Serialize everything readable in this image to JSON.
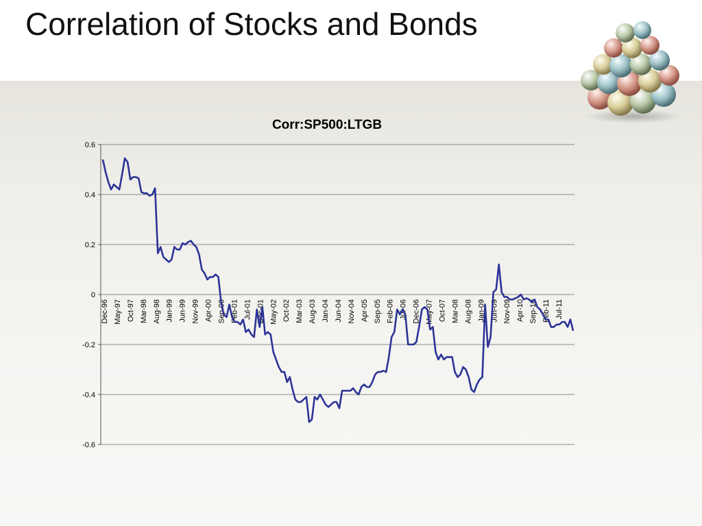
{
  "slide": {
    "title": "Correlation of Stocks and Bonds",
    "logo_icon": "money-balls-pyramid-icon"
  },
  "chart_data": {
    "type": "line",
    "title": "Corr:SP500:LTGB",
    "xlabel": "",
    "ylabel": "",
    "ylim": [
      -0.6,
      0.6
    ],
    "yticks": [
      "0.6",
      "0.4",
      "0.2",
      "0",
      "-0.2",
      "-0.4",
      "-0.6"
    ],
    "xticks": [
      "Dec-96",
      "May-97",
      "Oct-97",
      "Mar-98",
      "Aug-98",
      "Jan-99",
      "Jun-99",
      "Nov-99",
      "Apr-00",
      "Sep-00",
      "Feb-01",
      "Jul-01",
      "Dec-01",
      "May-02",
      "Oct-02",
      "Mar-03",
      "Aug-03",
      "Jan-04",
      "Jun-04",
      "Nov-04",
      "Apr-05",
      "Sep-05",
      "Feb-06",
      "Jul-06",
      "Dec-06",
      "May-07",
      "Oct-07",
      "Mar-08",
      "Aug-08",
      "Jan-09",
      "Jun-09",
      "Nov-09",
      "Apr-10",
      "Sep-10",
      "Feb-11",
      "Jul-11"
    ],
    "grid": true,
    "line_color": "#2b3396",
    "series": [
      {
        "values": [
          0.54,
          0.49,
          0.45,
          0.42,
          0.44,
          0.43,
          0.42,
          0.48,
          0.545,
          0.53,
          0.46,
          0.47,
          0.47,
          0.465,
          0.41,
          0.405,
          0.405,
          0.395,
          0.4,
          0.425,
          0.165,
          0.19,
          0.15,
          0.14,
          0.13,
          0.14,
          0.19,
          0.18,
          0.18,
          0.205,
          0.2,
          0.21,
          0.215,
          0.2,
          0.19,
          0.16,
          0.1,
          0.085,
          0.06,
          0.07,
          0.07,
          0.08,
          0.07,
          -0.03,
          -0.08,
          -0.09,
          -0.04,
          -0.09,
          -0.11,
          -0.11,
          -0.12,
          -0.1,
          -0.15,
          -0.14,
          -0.16,
          -0.17,
          -0.06,
          -0.13,
          -0.05,
          -0.16,
          -0.15,
          -0.16,
          -0.23,
          -0.26,
          -0.29,
          -0.31,
          -0.31,
          -0.35,
          -0.33,
          -0.38,
          -0.42,
          -0.43,
          -0.43,
          -0.42,
          -0.41,
          -0.51,
          -0.5,
          -0.41,
          -0.42,
          -0.4,
          -0.42,
          -0.44,
          -0.45,
          -0.44,
          -0.43,
          -0.43,
          -0.455,
          -0.385,
          -0.385,
          -0.385,
          -0.385,
          -0.375,
          -0.39,
          -0.4,
          -0.37,
          -0.36,
          -0.37,
          -0.37,
          -0.35,
          -0.32,
          -0.31,
          -0.31,
          -0.305,
          -0.31,
          -0.25,
          -0.17,
          -0.15,
          -0.06,
          -0.08,
          -0.06,
          -0.08,
          -0.2,
          -0.2,
          -0.2,
          -0.19,
          -0.13,
          -0.06,
          -0.05,
          -0.06,
          -0.14,
          -0.13,
          -0.23,
          -0.26,
          -0.24,
          -0.26,
          -0.25,
          -0.25,
          -0.25,
          -0.31,
          -0.33,
          -0.32,
          -0.29,
          -0.3,
          -0.33,
          -0.38,
          -0.39,
          -0.36,
          -0.34,
          -0.33,
          -0.04,
          -0.21,
          -0.17,
          0.01,
          0.02,
          0.12,
          0.01,
          -0.01,
          -0.01,
          -0.02,
          -0.02,
          -0.015,
          -0.01,
          0.0,
          -0.02,
          -0.015,
          -0.02,
          -0.03,
          -0.02,
          -0.05,
          -0.06,
          -0.08,
          -0.1,
          -0.1,
          -0.13,
          -0.13,
          -0.12,
          -0.12,
          -0.11,
          -0.11,
          -0.13,
          -0.1,
          -0.145
        ]
      }
    ]
  }
}
